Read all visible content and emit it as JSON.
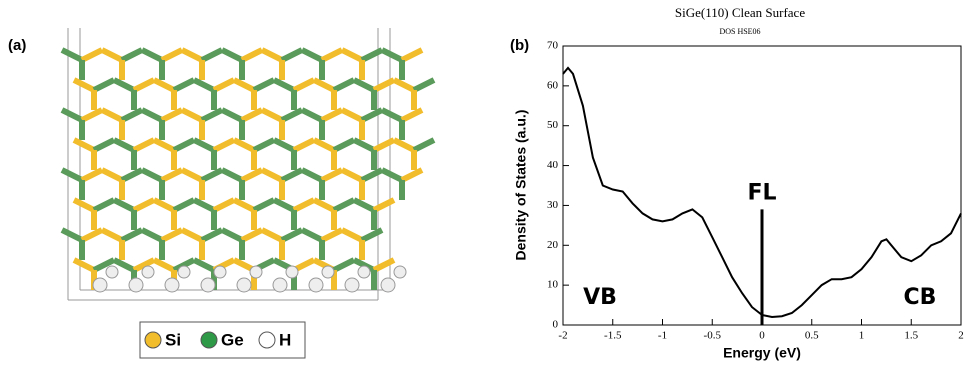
{
  "panel_a": {
    "label": "(a)",
    "legend": [
      "Si",
      "Ge",
      "H"
    ]
  },
  "chart_data": {
    "type": "line",
    "panel_label": "(b)",
    "title": "SiGe(110) Clean Surface",
    "subtitle": "DOS HSE06",
    "x_label": "Energy (eV)",
    "y_label": "Density of States (a.u.)",
    "x": [
      -2,
      -1.95,
      -1.9,
      -1.8,
      -1.7,
      -1.6,
      -1.5,
      -1.4,
      -1.3,
      -1.2,
      -1.1,
      -1.0,
      -0.9,
      -0.8,
      -0.7,
      -0.6,
      -0.5,
      -0.4,
      -0.3,
      -0.2,
      -0.1,
      0,
      0.1,
      0.2,
      0.3,
      0.4,
      0.5,
      0.6,
      0.7,
      0.8,
      0.9,
      1.0,
      1.1,
      1.2,
      1.25,
      1.3,
      1.4,
      1.5,
      1.6,
      1.7,
      1.8,
      1.9,
      2.0
    ],
    "values": [
      63,
      64.5,
      63,
      55,
      42,
      35,
      34,
      33.5,
      30.5,
      28,
      26.5,
      26,
      26.5,
      28,
      29,
      27,
      22,
      17,
      12,
      8,
      4.5,
      2.5,
      2,
      2.2,
      3,
      5,
      7.5,
      10,
      11.5,
      11.5,
      12,
      14,
      17,
      21,
      21.5,
      20,
      17,
      16,
      17.5,
      20,
      21,
      23,
      28
    ],
    "color": "#000000",
    "xlim": [
      -2,
      2
    ],
    "xticks": [
      -2,
      -1.5,
      -1,
      -0.5,
      0,
      0.5,
      1,
      1.5,
      2
    ],
    "ylim": [
      0,
      70
    ],
    "yticks": [
      0,
      10,
      20,
      30,
      40,
      50,
      60,
      70
    ],
    "marker": {
      "label": "FL",
      "x": 0,
      "y": 29
    },
    "annotations": [
      "VB",
      "CB"
    ]
  }
}
